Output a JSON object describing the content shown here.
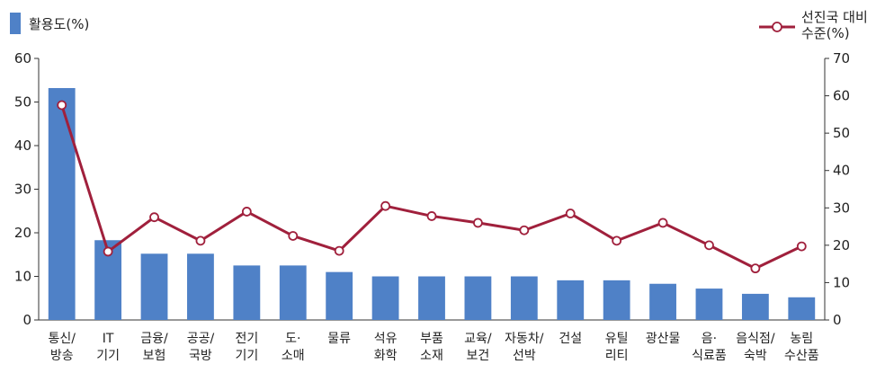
{
  "chart_data": {
    "type": "bar",
    "categories": [
      [
        "통신/",
        "방송"
      ],
      [
        "IT",
        "기기"
      ],
      [
        "금융/",
        "보험"
      ],
      [
        "공공/",
        "국방"
      ],
      [
        "전기",
        "기기"
      ],
      [
        "도·",
        "소매"
      ],
      [
        "물류"
      ],
      [
        "석유",
        "화학"
      ],
      [
        "부품",
        "소재"
      ],
      [
        "교육/",
        "보건"
      ],
      [
        "자동차/",
        "선박"
      ],
      [
        "건설"
      ],
      [
        "유틸",
        "리티"
      ],
      [
        "광산물"
      ],
      [
        "음·",
        "식료품"
      ],
      [
        "음식점/",
        "숙박"
      ],
      [
        "농림",
        "수산품"
      ]
    ],
    "series": [
      {
        "name": "활용도(%)",
        "type": "bar",
        "axis": "left",
        "color": "#4f81c7",
        "values": [
          53.2,
          18.3,
          15.2,
          15.2,
          12.5,
          12.5,
          11.0,
          10.0,
          10.0,
          10.0,
          10.0,
          9.1,
          9.1,
          8.3,
          7.2,
          6.0,
          5.2
        ]
      },
      {
        "name": "선진국 대비\n수준(%)",
        "name_lines": [
          "선진국 대비",
          "수준(%)"
        ],
        "type": "line",
        "axis": "right",
        "color": "#a0203c",
        "values": [
          57.5,
          18.3,
          27.5,
          21.2,
          29.0,
          22.5,
          18.5,
          30.5,
          27.8,
          26.0,
          24.0,
          28.5,
          21.2,
          26.0,
          20.0,
          13.8,
          19.7
        ]
      }
    ],
    "y_left": {
      "ticks": [
        "0",
        "10",
        "20",
        "30",
        "40",
        "50",
        "60"
      ],
      "ylim": [
        0,
        60
      ]
    },
    "y_right": {
      "ticks": [
        "0",
        "10",
        "20",
        "30",
        "40",
        "50",
        "60",
        "70"
      ],
      "ylim": [
        0,
        70
      ]
    },
    "grid": false,
    "legend": {
      "bar_position": "top-left",
      "line_position": "top-right"
    }
  }
}
